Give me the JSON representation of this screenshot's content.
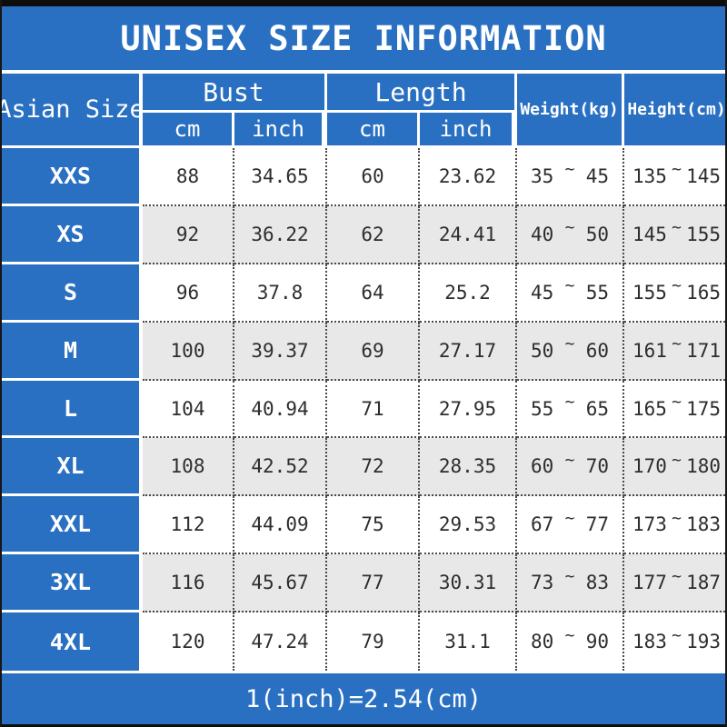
{
  "title": "UNISEX SIZE INFORMATION",
  "footer_note": "1(inch)=2.54(cm)",
  "colors": {
    "banner_blue": "#2a70c2",
    "alt_row_gray": "#e8e8e8",
    "frame_black": "#0d0d0d",
    "cell_text": "#2d2d2d"
  },
  "table": {
    "tilde": "~",
    "corner_header": "Asian Size",
    "groups": [
      {
        "label": "Bust",
        "sub": [
          "cm",
          "inch"
        ]
      },
      {
        "label": "Length",
        "sub": [
          "cm",
          "inch"
        ]
      }
    ],
    "single_headers": [
      "Weight(kg)",
      "Height(cm)"
    ],
    "rows": [
      {
        "size": "XXS",
        "bust_cm": "88",
        "bust_inch": "34.65",
        "length_cm": "60",
        "length_inch": "23.62",
        "weight": [
          "35",
          "45"
        ],
        "height": [
          "135",
          "145"
        ]
      },
      {
        "size": "XS",
        "bust_cm": "92",
        "bust_inch": "36.22",
        "length_cm": "62",
        "length_inch": "24.41",
        "weight": [
          "40",
          "50"
        ],
        "height": [
          "145",
          "155"
        ]
      },
      {
        "size": "S",
        "bust_cm": "96",
        "bust_inch": "37.8",
        "length_cm": "64",
        "length_inch": "25.2",
        "weight": [
          "45",
          "55"
        ],
        "height": [
          "155",
          "165"
        ]
      },
      {
        "size": "M",
        "bust_cm": "100",
        "bust_inch": "39.37",
        "length_cm": "69",
        "length_inch": "27.17",
        "weight": [
          "50",
          "60"
        ],
        "height": [
          "161",
          "171"
        ]
      },
      {
        "size": "L",
        "bust_cm": "104",
        "bust_inch": "40.94",
        "length_cm": "71",
        "length_inch": "27.95",
        "weight": [
          "55",
          "65"
        ],
        "height": [
          "165",
          "175"
        ]
      },
      {
        "size": "XL",
        "bust_cm": "108",
        "bust_inch": "42.52",
        "length_cm": "72",
        "length_inch": "28.35",
        "weight": [
          "60",
          "70"
        ],
        "height": [
          "170",
          "180"
        ]
      },
      {
        "size": "XXL",
        "bust_cm": "112",
        "bust_inch": "44.09",
        "length_cm": "75",
        "length_inch": "29.53",
        "weight": [
          "67",
          "77"
        ],
        "height": [
          "173",
          "183"
        ]
      },
      {
        "size": "3XL",
        "bust_cm": "116",
        "bust_inch": "45.67",
        "length_cm": "77",
        "length_inch": "30.31",
        "weight": [
          "73",
          "83"
        ],
        "height": [
          "177",
          "187"
        ]
      },
      {
        "size": "4XL",
        "bust_cm": "120",
        "bust_inch": "47.24",
        "length_cm": "79",
        "length_inch": "31.1",
        "weight": [
          "80",
          "90"
        ],
        "height": [
          "183",
          "193"
        ]
      }
    ]
  }
}
